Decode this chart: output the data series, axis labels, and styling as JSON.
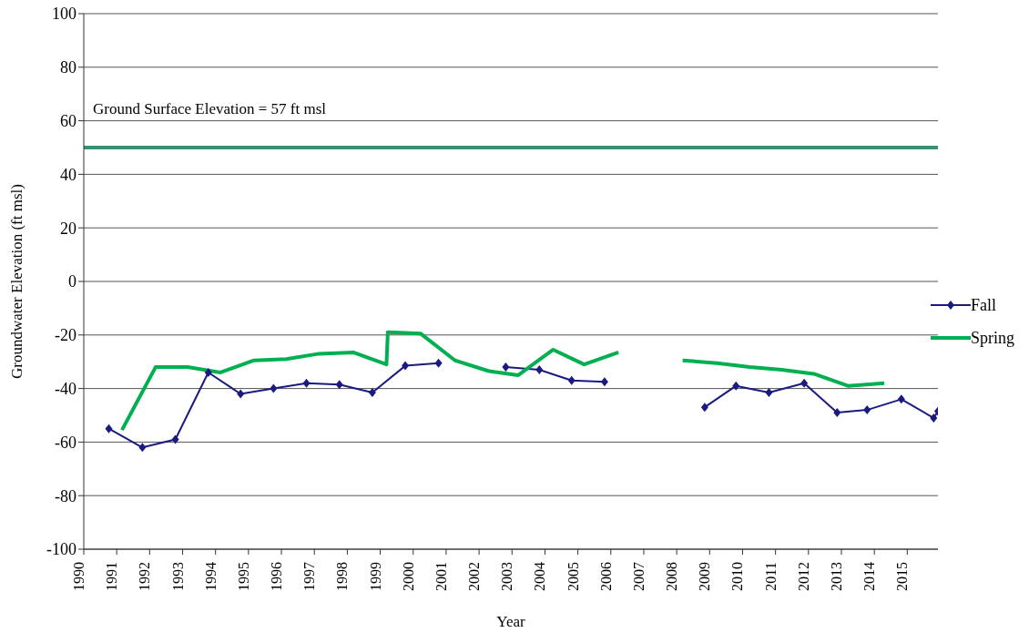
{
  "chart_data": {
    "type": "line",
    "xlabel": "Year",
    "ylabel": "Groundwater Elevation (ft msl)",
    "xlim": [
      1990,
      2015.93
    ],
    "xticks": [
      1990,
      1991,
      1992,
      1993,
      1994,
      1995,
      1996,
      1997,
      1998,
      1999,
      2000,
      2001,
      2002,
      2003,
      2004,
      2005,
      2006,
      2007,
      2008,
      2009,
      2010,
      2011,
      2012,
      2013,
      2014,
      2015
    ],
    "ylim": [
      -100,
      100
    ],
    "yticks": [
      -100,
      -80,
      -60,
      -40,
      -20,
      0,
      20,
      40,
      60,
      80,
      100
    ],
    "grid": "y",
    "legend": "right",
    "line_style": "solid",
    "annotations": [
      "Ground Surface Elevation = 57 ft msl"
    ],
    "ref_lines": [
      {
        "axis": "y",
        "value": 50,
        "color": "#3a9070"
      }
    ],
    "series": [
      {
        "name": "Fall",
        "color": "#1a1a80",
        "marker": "diamond",
        "x": [
          1990.76,
          1991.78,
          1992.78,
          1993.78,
          1994.76,
          1995.76,
          1996.76,
          1997.76,
          1998.76,
          1999.76,
          2000.77,
          2001.8,
          2002.81,
          2003.83,
          2004.81,
          2005.81,
          2007.3,
          2008.85,
          2009.8,
          2010.8,
          2011.87,
          2012.87,
          2013.78,
          2014.82,
          2015.8,
          2015.93
        ],
        "values": [
          -55,
          -62,
          -59,
          -34,
          -42,
          -40,
          -38,
          -38.5,
          -41.5,
          -31.5,
          -30.5,
          null,
          -32,
          -33,
          -37,
          -37.5,
          null,
          -47,
          -39,
          -41.5,
          -38,
          -49,
          -48,
          -44,
          -51,
          -48.5
        ]
      },
      {
        "name": "Spring",
        "color": "#00b050",
        "marker": "none",
        "x": [
          1991.16,
          1992.18,
          1993.15,
          1994.15,
          1995.17,
          1996.15,
          1997.14,
          1998.18,
          1999.19,
          1999.23,
          2000.23,
          2001.27,
          2002.3,
          2003.19,
          2004.25,
          2005.19,
          2006.23,
          2007.2,
          2008.18,
          2009.22,
          2010.22,
          2011.19,
          2012.16,
          2013.2,
          2014.3
        ],
        "values": [
          -55.5,
          -32,
          -32,
          -34,
          -29.5,
          -29,
          -27,
          -26.5,
          -31,
          -19,
          -19.5,
          -29.5,
          -33.5,
          -35,
          -25.5,
          -31,
          -26.5,
          null,
          -29.5,
          -30.5,
          -32,
          -33,
          -34.5,
          -39,
          -38
        ]
      }
    ]
  }
}
